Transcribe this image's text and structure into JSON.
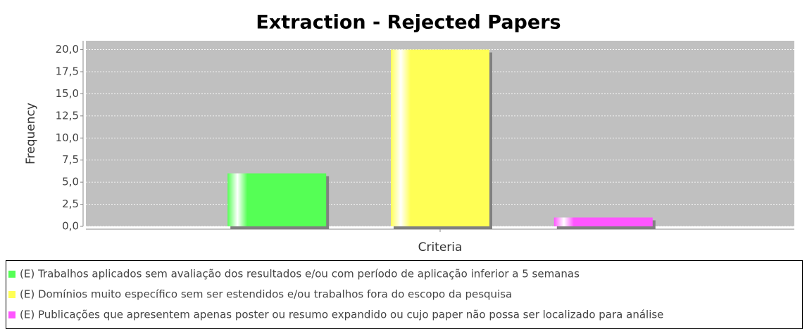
{
  "chart_data": {
    "type": "bar",
    "title": "Extraction - Rejected Papers",
    "x_label": "Criteria",
    "y_label": "Frequency",
    "categories": [
      null
    ],
    "series": [
      {
        "name": "(E) Trabalhos aplicados sem avaliação dos resultados e/ou com período de aplicação inferior a 5 semanas",
        "color": "#55ff55",
        "values": [
          6
        ]
      },
      {
        "name": "(E) Domínios muito específico sem ser estendidos e/ou trabalhos fora do escopo da pesquisa",
        "color": "#ffff55",
        "values": [
          20
        ]
      },
      {
        "name": "(E) Publicações que apresentem apenas poster ou resumo expandido ou cujo paper não possa ser localizado para análise",
        "color": "#ff55ff",
        "values": [
          1
        ]
      }
    ],
    "ylim": [
      0,
      21
    ],
    "yticks": [
      {
        "value": 0,
        "label": "0,0"
      },
      {
        "value": 2.5,
        "label": "2,5"
      },
      {
        "value": 5,
        "label": "5,0"
      },
      {
        "value": 7.5,
        "label": "7,5"
      },
      {
        "value": 10,
        "label": "10,0"
      },
      {
        "value": 12.5,
        "label": "12,5"
      },
      {
        "value": 15,
        "label": "15,0"
      },
      {
        "value": 17.5,
        "label": "17,5"
      },
      {
        "value": 20,
        "label": "20,0"
      }
    ],
    "grid": true,
    "legend": "bottom"
  }
}
